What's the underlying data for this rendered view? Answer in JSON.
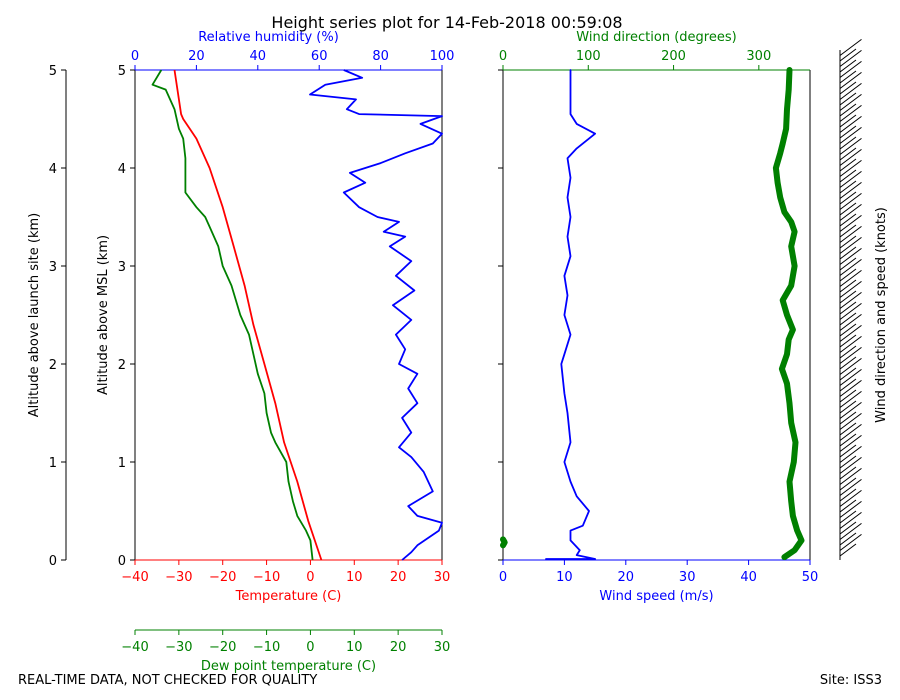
{
  "title": "Height series plot for 14-Feb-2018 00:59:08",
  "footer_left": "REAL-TIME DATA, NOT CHECKED FOR QUALITY",
  "footer_right": "Site: ISS3",
  "colors": {
    "temperature": "#ff0000",
    "dewpoint": "#008000",
    "humidity": "#0000ff",
    "wind_speed": "#0000ff",
    "wind_direction": "#008000",
    "barb": "#000000"
  },
  "chart_data": [
    {
      "type": "line",
      "name": "thermo-panel",
      "axes": {
        "left_outer": {
          "label": "Altitude above launch site (km)",
          "range": [
            0,
            5
          ],
          "ticks": [
            0,
            1,
            2,
            3,
            4,
            5
          ]
        },
        "left_inner": {
          "label": "Altitude above MSL (km)",
          "range": [
            0,
            5
          ],
          "ticks": [
            0,
            1,
            2,
            3,
            4,
            5
          ]
        },
        "bottom": {
          "label": "Temperature (C)",
          "range": [
            -40,
            30
          ],
          "ticks": [
            -40,
            -30,
            -20,
            -10,
            0,
            10,
            20,
            30
          ]
        },
        "bottom2": {
          "label": "Dew point temperature (C)",
          "range": [
            -40,
            30
          ],
          "ticks": [
            -40,
            -30,
            -20,
            -10,
            0,
            10,
            20,
            30
          ]
        },
        "top": {
          "label": "Relative humidity (%)",
          "range": [
            0,
            100
          ],
          "ticks": [
            0,
            20,
            40,
            60,
            80,
            100
          ]
        }
      },
      "series": [
        {
          "name": "Temperature",
          "unit": "C",
          "color": "#ff0000",
          "points": [
            [
              2.5,
              0
            ],
            [
              1,
              0.2
            ],
            [
              -0.5,
              0.4
            ],
            [
              -3,
              0.8
            ],
            [
              -6,
              1.2
            ],
            [
              -8,
              1.6
            ],
            [
              -10.5,
              2.0
            ],
            [
              -13,
              2.4
            ],
            [
              -15,
              2.8
            ],
            [
              -17.5,
              3.2
            ],
            [
              -20,
              3.6
            ],
            [
              -23,
              4.0
            ],
            [
              -26,
              4.3
            ],
            [
              -29,
              4.5
            ],
            [
              -29.5,
              4.55
            ],
            [
              -30,
              4.7
            ],
            [
              -31,
              5.0
            ]
          ]
        },
        {
          "name": "Dew point",
          "unit": "C",
          "color": "#008000",
          "points": [
            [
              0.5,
              0
            ],
            [
              0,
              0.2
            ],
            [
              -1,
              0.3
            ],
            [
              -3,
              0.45
            ],
            [
              -4,
              0.6
            ],
            [
              -5,
              0.8
            ],
            [
              -5.5,
              1.0
            ],
            [
              -8,
              1.2
            ],
            [
              -9,
              1.3
            ],
            [
              -10,
              1.5
            ],
            [
              -10.5,
              1.7
            ],
            [
              -12,
              1.9
            ],
            [
              -13,
              2.1
            ],
            [
              -14,
              2.3
            ],
            [
              -16,
              2.5
            ],
            [
              -18,
              2.8
            ],
            [
              -20,
              3.0
            ],
            [
              -21,
              3.2
            ],
            [
              -23,
              3.4
            ],
            [
              -24,
              3.5
            ],
            [
              -26,
              3.6
            ],
            [
              -28.5,
              3.75
            ],
            [
              -28.5,
              3.9
            ],
            [
              -28.5,
              4.1
            ],
            [
              -29,
              4.3
            ],
            [
              -30,
              4.4
            ],
            [
              -31,
              4.6
            ],
            [
              -33,
              4.8
            ],
            [
              -36,
              4.85
            ],
            [
              -34,
              5.0
            ]
          ]
        },
        {
          "name": "Relative humidity",
          "unit": "%",
          "color": "#0000ff",
          "axis": "top",
          "points": [
            [
              87,
              0
            ],
            [
              90,
              0.08
            ],
            [
              92,
              0.15
            ],
            [
              99,
              0.3
            ],
            [
              100,
              0.38
            ],
            [
              92,
              0.45
            ],
            [
              89,
              0.55
            ],
            [
              97,
              0.7
            ],
            [
              94,
              0.9
            ],
            [
              90,
              1.05
            ],
            [
              86,
              1.15
            ],
            [
              90,
              1.3
            ],
            [
              87,
              1.45
            ],
            [
              92,
              1.6
            ],
            [
              89,
              1.75
            ],
            [
              92,
              1.9
            ],
            [
              86,
              2.0
            ],
            [
              88,
              2.15
            ],
            [
              85,
              2.3
            ],
            [
              90,
              2.45
            ],
            [
              84,
              2.6
            ],
            [
              91,
              2.75
            ],
            [
              85,
              2.9
            ],
            [
              90,
              3.05
            ],
            [
              83,
              3.2
            ],
            [
              88,
              3.3
            ],
            [
              81,
              3.35
            ],
            [
              86,
              3.45
            ],
            [
              79,
              3.5
            ],
            [
              73,
              3.6
            ],
            [
              68,
              3.75
            ],
            [
              75,
              3.85
            ],
            [
              70,
              3.95
            ],
            [
              80,
              4.05
            ],
            [
              88,
              4.15
            ],
            [
              97,
              4.25
            ],
            [
              100,
              4.35
            ],
            [
              93,
              4.45
            ],
            [
              100,
              4.53
            ],
            [
              73,
              4.55
            ],
            [
              69,
              4.6
            ],
            [
              72,
              4.7
            ],
            [
              57,
              4.75
            ],
            [
              62,
              4.85
            ],
            [
              74,
              4.92
            ],
            [
              68,
              5.0
            ]
          ]
        }
      ]
    },
    {
      "type": "line",
      "name": "wind-panel",
      "axes": {
        "bottom": {
          "label": "Wind speed (m/s)",
          "range": [
            0,
            50
          ],
          "ticks": [
            0,
            10,
            20,
            30,
            40,
            50
          ]
        },
        "top": {
          "label": "Wind direction (degrees)",
          "range": [
            0,
            360
          ],
          "ticks": [
            0,
            100,
            200,
            300
          ]
        },
        "right": {
          "label": "Wind direction and speed (knots)",
          "range": [
            0,
            5
          ]
        }
      },
      "series": [
        {
          "name": "Wind speed",
          "unit": "m/s",
          "color": "#0000ff",
          "points": [
            [
              7,
              0.01
            ],
            [
              15,
              0.01
            ],
            [
              12,
              0.05
            ],
            [
              12.5,
              0.1
            ],
            [
              11,
              0.2
            ],
            [
              11,
              0.3
            ],
            [
              13,
              0.35
            ],
            [
              14,
              0.5
            ],
            [
              12,
              0.65
            ],
            [
              11,
              0.8
            ],
            [
              10,
              1.0
            ],
            [
              11,
              1.2
            ],
            [
              10.5,
              1.5
            ],
            [
              10,
              1.7
            ],
            [
              9.5,
              2.0
            ],
            [
              10,
              2.1
            ],
            [
              11,
              2.3
            ],
            [
              10,
              2.5
            ],
            [
              10.5,
              2.7
            ],
            [
              10,
              2.9
            ],
            [
              11,
              3.1
            ],
            [
              10.5,
              3.3
            ],
            [
              11,
              3.5
            ],
            [
              10.5,
              3.7
            ],
            [
              11,
              3.9
            ],
            [
              10.5,
              4.1
            ],
            [
              12,
              4.2
            ],
            [
              15,
              4.35
            ],
            [
              12,
              4.45
            ],
            [
              11,
              4.55
            ],
            [
              11,
              4.8
            ],
            [
              11,
              5.0
            ]
          ]
        },
        {
          "name": "Wind direction",
          "unit": "degrees",
          "color": "#008000",
          "axis": "top",
          "points": [
            [
              330,
              0.03
            ],
            [
              342,
              0.1
            ],
            [
              350,
              0.2
            ],
            [
              345,
              0.3
            ],
            [
              340,
              0.45
            ],
            [
              338,
              0.6
            ],
            [
              336,
              0.8
            ],
            [
              341,
              1.0
            ],
            [
              343,
              1.2
            ],
            [
              338,
              1.4
            ],
            [
              336,
              1.6
            ],
            [
              333,
              1.8
            ],
            [
              327,
              1.95
            ],
            [
              333,
              2.1
            ],
            [
              335,
              2.25
            ],
            [
              340,
              2.35
            ],
            [
              333,
              2.5
            ],
            [
              328,
              2.65
            ],
            [
              338,
              2.8
            ],
            [
              342,
              3.0
            ],
            [
              338,
              3.2
            ],
            [
              342,
              3.35
            ],
            [
              338,
              3.45
            ],
            [
              330,
              3.55
            ],
            [
              325,
              3.7
            ],
            [
              322,
              3.85
            ],
            [
              320,
              4.0
            ],
            [
              325,
              4.15
            ],
            [
              328,
              4.25
            ],
            [
              332,
              4.4
            ],
            [
              333,
              4.6
            ],
            [
              335,
              4.8
            ],
            [
              336,
              5.0
            ]
          ]
        },
        {
          "name": "Wind direction near surface",
          "unit": "degrees",
          "color": "#008000",
          "axis": "top",
          "points": [
            [
              0,
              0.15
            ],
            [
              2,
              0.18
            ],
            [
              0,
              0.21
            ]
          ]
        }
      ]
    }
  ]
}
